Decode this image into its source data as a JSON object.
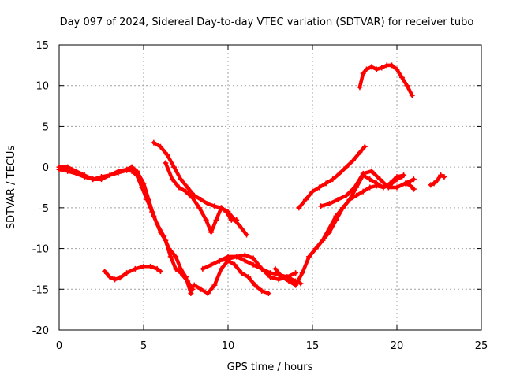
{
  "chart_data": {
    "type": "scatter",
    "title": "Day 097 of 2024, Sidereal Day-to-day VTEC variation (SDTVAR) for receiver tubo",
    "xlabel": "GPS time / hours",
    "ylabel": "SDTVAR / TECUs",
    "xlim": [
      0,
      25
    ],
    "ylim": [
      -20,
      15
    ],
    "xticks": [
      "0",
      "5",
      "10",
      "15",
      "20",
      "25"
    ],
    "yticks": [
      "15",
      "10",
      "5",
      "0",
      "-5",
      "-10",
      "-15",
      "-20"
    ],
    "grid": true,
    "marker": "+",
    "color": "#ff0000",
    "series": [
      {
        "x": [
          0,
          0.5,
          1,
          1.5,
          2,
          2.5,
          3,
          3.5,
          4,
          4.3,
          4.6,
          5,
          5.3,
          5.6,
          6,
          6.3,
          6.6,
          6.9,
          7.2,
          7.6,
          7.9
        ],
        "y": [
          0,
          0,
          -0.5,
          -1,
          -1.5,
          -1.5,
          -1,
          -0.5,
          -0.3,
          0,
          -0.5,
          -2,
          -4,
          -6,
          -8,
          -9,
          -11,
          -12.5,
          -13,
          -14,
          -15
        ]
      },
      {
        "x": [
          0,
          0.5,
          1,
          1.5,
          2,
          2.5,
          3,
          3.5,
          4,
          4.3,
          4.6,
          4.9,
          5.2,
          5.5,
          5.8,
          6.2,
          6.5,
          6.9,
          7.2,
          7.5,
          7.8
        ],
        "y": [
          -0.3,
          -0.5,
          -0.8,
          -1.2,
          -1.5,
          -1.2,
          -1,
          -0.7,
          -0.4,
          -0.5,
          -1,
          -2.5,
          -4,
          -5.5,
          -7,
          -8.5,
          -10,
          -11,
          -12.5,
          -13.5,
          -15.5
        ]
      },
      {
        "x": [
          2.7,
          3,
          3.3,
          3.6,
          4,
          4.5,
          5,
          5.4,
          5.8,
          6.0
        ],
        "y": [
          -12.8,
          -13.5,
          -13.8,
          -13.6,
          -13,
          -12.5,
          -12.2,
          -12.2,
          -12.5,
          -12.8
        ]
      },
      {
        "x": [
          5.6,
          6,
          6.4,
          6.8,
          7.2,
          7.6,
          8,
          8.4,
          8.8,
          9.2,
          9.6,
          10,
          10.4,
          10.8,
          11.1
        ],
        "y": [
          3,
          2.5,
          1.5,
          0,
          -1.5,
          -2.5,
          -3.5,
          -4,
          -4.5,
          -4.8,
          -5,
          -5.5,
          -6.5,
          -7.5,
          -8.3
        ]
      },
      {
        "x": [
          6.3,
          6.7,
          7.1,
          7.5,
          7.9,
          8.3,
          8.7,
          9.0,
          9.3,
          9.6,
          9.9,
          10.2,
          10.5
        ],
        "y": [
          0.5,
          -1.5,
          -2.5,
          -3,
          -3.8,
          -5,
          -6.5,
          -8,
          -6.5,
          -5,
          -5.5,
          -6.5,
          -6.5
        ]
      },
      {
        "x": [
          8,
          8.4,
          8.8,
          9.2,
          9.6,
          10,
          10.4,
          10.8,
          11.2,
          11.6,
          12.0,
          12.4
        ],
        "y": [
          -14.5,
          -15,
          -15.5,
          -14.5,
          -12.5,
          -11.5,
          -12,
          -13,
          -13.5,
          -14.5,
          -15.2,
          -15.5
        ]
      },
      {
        "x": [
          8.5,
          9,
          9.5,
          10,
          10.5,
          11,
          11.5,
          12,
          12.5,
          13,
          13.5,
          14,
          14.3
        ],
        "y": [
          -12.5,
          -12,
          -11.5,
          -11,
          -11,
          -11.5,
          -12,
          -12.5,
          -13,
          -13.2,
          -13.5,
          -14,
          -14.3
        ]
      },
      {
        "x": [
          9.5,
          10,
          10.5,
          11,
          11.5,
          12,
          12.5,
          13,
          13.5,
          14
        ],
        "y": [
          -11.5,
          -11.3,
          -11,
          -10.8,
          -11.2,
          -12.5,
          -13.5,
          -13.8,
          -13.5,
          -13
        ]
      },
      {
        "x": [
          12.8,
          13.2,
          13.6,
          14,
          14.4,
          14.8,
          15.2,
          15.6,
          16,
          16.4,
          16.8,
          17.2,
          17.6,
          18.0,
          18.4,
          18.8,
          19.2,
          19.6,
          20.0,
          20.3
        ],
        "y": [
          -12.5,
          -13.5,
          -14,
          -14.5,
          -13,
          -11,
          -10,
          -9,
          -7.5,
          -6,
          -5,
          -4,
          -2.5,
          -1,
          -1.5,
          -2,
          -2.5,
          -2.2,
          -1.5,
          -1.2
        ]
      },
      {
        "x": [
          14.2,
          14.6,
          15,
          15.4,
          15.8,
          16.2,
          16.6,
          17,
          17.4,
          17.8,
          18.1
        ],
        "y": [
          -5,
          -4,
          -3,
          -2.5,
          -2,
          -1.5,
          -0.8,
          0,
          0.8,
          1.8,
          2.5
        ]
      },
      {
        "x": [
          14.8,
          15.2,
          15.6,
          16,
          16.4,
          16.8,
          17.2,
          17.6,
          18.0,
          18.4,
          18.8,
          19.2,
          19.6,
          20.0,
          20.4
        ],
        "y": [
          -11,
          -10,
          -9,
          -8,
          -6.5,
          -5,
          -4,
          -3.5,
          -3,
          -2.5,
          -2.3,
          -2.5,
          -2,
          -1.2,
          -1
        ]
      },
      {
        "x": [
          15.5,
          16,
          16.5,
          17,
          17.5,
          18,
          18.5,
          19,
          19.5,
          20,
          20.5,
          21
        ],
        "y": [
          -4.8,
          -4.5,
          -4,
          -3.5,
          -2.5,
          -0.8,
          -0.5,
          -1.5,
          -2.5,
          -2.5,
          -2,
          -1.5
        ]
      },
      {
        "x": [
          17.8,
          18.0,
          18.2,
          18.5,
          18.8,
          19.1,
          19.4,
          19.7,
          20.0,
          20.3,
          20.6,
          20.9
        ],
        "y": [
          9.8,
          11.5,
          12,
          12.3,
          12,
          12.2,
          12.5,
          12.5,
          12,
          11,
          10,
          8.8
        ]
      },
      {
        "x": [
          20.6,
          20.8,
          21.0
        ],
        "y": [
          -2,
          -2.3,
          -2.7
        ]
      },
      {
        "x": [
          22.0,
          22.2,
          22.4,
          22.6,
          22.8
        ],
        "y": [
          -2.2,
          -2.0,
          -1.6,
          -1.0,
          -1.2
        ]
      }
    ]
  }
}
